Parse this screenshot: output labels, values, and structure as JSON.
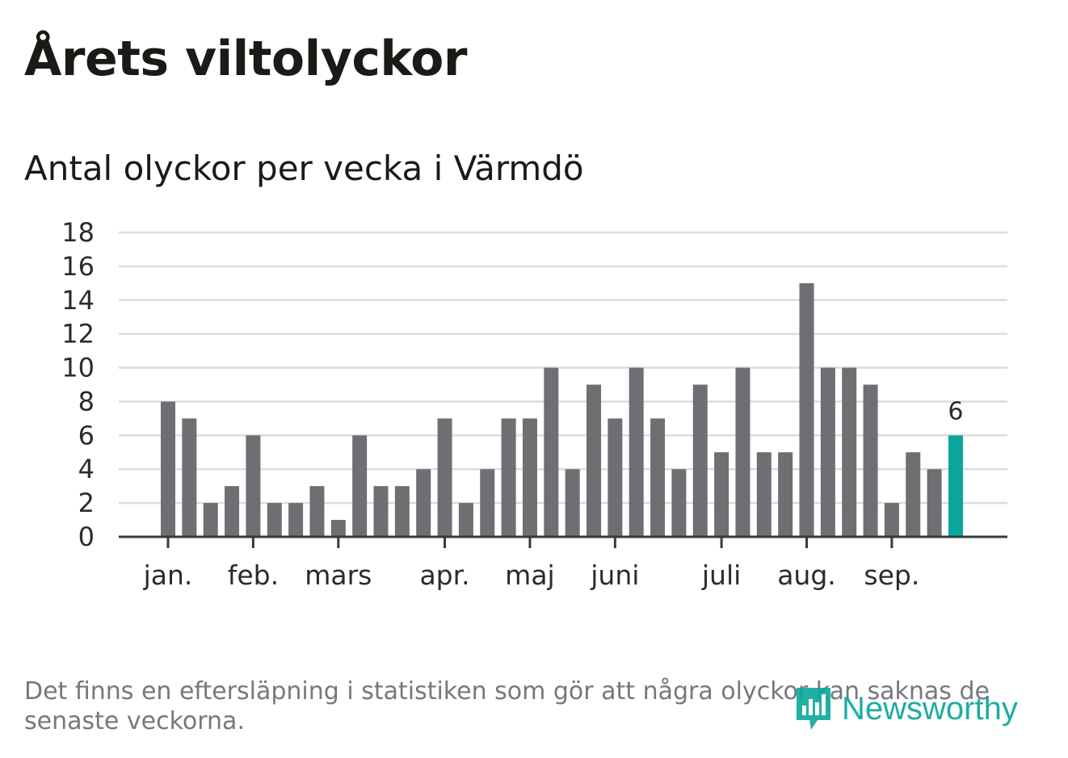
{
  "title": "Årets viltolyckor",
  "subtitle": "Antal olyckor per vecka i Värmdö",
  "note": "Det finns en eftersläpning i statistiken som gör att några olyckor kan saknas de senaste veckorna.",
  "brand": {
    "name": "Newsworthy",
    "icon": "newsworthy-bar-chart-icon",
    "color": "#0aa69b"
  },
  "chart_data": {
    "type": "bar",
    "title": "Antal olyckor per vecka i Värmdö",
    "xlabel": "",
    "ylabel": "",
    "ylim": [
      0,
      18
    ],
    "yticks": [
      0,
      2,
      4,
      6,
      8,
      10,
      12,
      14,
      16,
      18
    ],
    "grid": true,
    "weeks": [
      1,
      2,
      3,
      4,
      5,
      6,
      7,
      8,
      9,
      10,
      11,
      12,
      13,
      14,
      15,
      16,
      17,
      18,
      19,
      20,
      21,
      22,
      23,
      24,
      25,
      26,
      27,
      28,
      29,
      30,
      31,
      32,
      33,
      34,
      35,
      36,
      37,
      38
    ],
    "values": [
      8,
      7,
      2,
      3,
      6,
      2,
      2,
      3,
      1,
      6,
      3,
      3,
      4,
      7,
      2,
      4,
      7,
      7,
      10,
      4,
      9,
      7,
      10,
      7,
      4,
      9,
      5,
      10,
      5,
      5,
      15,
      10,
      10,
      9,
      2,
      5,
      4,
      6
    ],
    "month_labels": [
      {
        "label": "jan.",
        "week": 1
      },
      {
        "label": "feb.",
        "week": 5
      },
      {
        "label": "mars",
        "week": 9
      },
      {
        "label": "apr.",
        "week": 14
      },
      {
        "label": "maj",
        "week": 18
      },
      {
        "label": "juni",
        "week": 22
      },
      {
        "label": "juli",
        "week": 27
      },
      {
        "label": "aug.",
        "week": 31
      },
      {
        "label": "sep.",
        "week": 35
      }
    ],
    "bar_color": "#6e6e73",
    "highlight_color": "#0aa69b",
    "highlight_index": 37,
    "highlight_label": "6"
  }
}
